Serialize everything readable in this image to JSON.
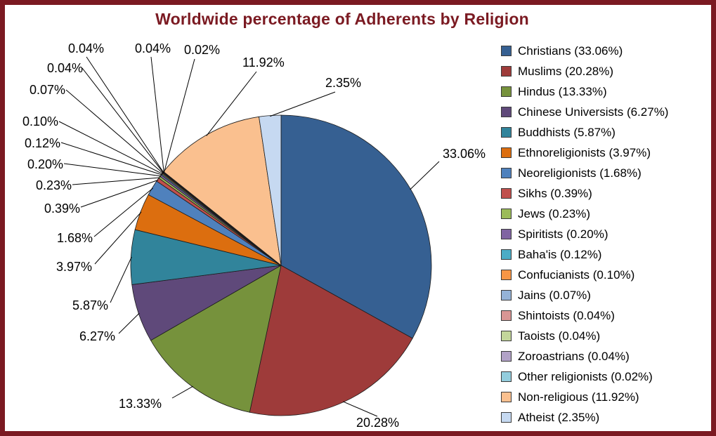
{
  "colors": {
    "frame_border": "#7B1A22",
    "title": "#7B1A22",
    "background": "#FFFFFF"
  },
  "chart_data": {
    "type": "pie",
    "title": "Worldwide percentage of Adherents by Religion",
    "legend_position": "right",
    "start_angle_deg": 0,
    "direction": "clockwise",
    "slices": [
      {
        "label": "Christians",
        "value": 33.06,
        "pct_text": "33.06%",
        "legend_text": "Christians (33.06%)",
        "color": "#366092"
      },
      {
        "label": "Muslims",
        "value": 20.28,
        "pct_text": "20.28%",
        "legend_text": "Muslims (20.28%)",
        "color": "#9E3B3A"
      },
      {
        "label": "Hindus",
        "value": 13.33,
        "pct_text": "13.33%",
        "legend_text": "Hindus (13.33%)",
        "color": "#76923C"
      },
      {
        "label": "Chinese Universists",
        "value": 6.27,
        "pct_text": "6.27%",
        "legend_text": "Chinese Universists (6.27%)",
        "color": "#5F497A"
      },
      {
        "label": "Buddhists",
        "value": 5.87,
        "pct_text": "5.87%",
        "legend_text": "Buddhists (5.87%)",
        "color": "#31849B"
      },
      {
        "label": "Ethnoreligionists",
        "value": 3.97,
        "pct_text": "3.97%",
        "legend_text": "Ethnoreligionists (3.97%)",
        "color": "#DC6E0F"
      },
      {
        "label": "Neoreligionists",
        "value": 1.68,
        "pct_text": "1.68%",
        "legend_text": "Neoreligionists (1.68%)",
        "color": "#4F81BD"
      },
      {
        "label": "Sikhs",
        "value": 0.39,
        "pct_text": "0.39%",
        "legend_text": "Sikhs (0.39%)",
        "color": "#C0504D"
      },
      {
        "label": "Jews",
        "value": 0.23,
        "pct_text": "0.23%",
        "legend_text": "Jews (0.23%)",
        "color": "#9BBB59"
      },
      {
        "label": "Spiritists",
        "value": 0.2,
        "pct_text": "0.20%",
        "legend_text": "Spiritists (0.20%)",
        "color": "#8064A2"
      },
      {
        "label": "Baha'is",
        "value": 0.12,
        "pct_text": "0.12%",
        "legend_text": "Baha'is (0.12%)",
        "color": "#4BACC6"
      },
      {
        "label": "Confucianists",
        "value": 0.1,
        "pct_text": "0.10%",
        "legend_text": "Confucianists (0.10%)",
        "color": "#F79646"
      },
      {
        "label": "Jains",
        "value": 0.07,
        "pct_text": "0.07%",
        "legend_text": "Jains (0.07%)",
        "color": "#95B3D7"
      },
      {
        "label": "Shintoists",
        "value": 0.04,
        "pct_text": "0.04%",
        "legend_text": "Shintoists (0.04%)",
        "color": "#D99694"
      },
      {
        "label": "Taoists",
        "value": 0.04,
        "pct_text": "0.04%",
        "legend_text": "Taoists (0.04%)",
        "color": "#C3D69B"
      },
      {
        "label": "Zoroastrians",
        "value": 0.04,
        "pct_text": "0.04%",
        "legend_text": "Zoroastrians (0.04%)",
        "color": "#B2A2C7"
      },
      {
        "label": "Other religionists",
        "value": 0.02,
        "pct_text": "0.02%",
        "legend_text": "Other religionists (0.02%)",
        "color": "#93CDDD"
      },
      {
        "label": "Non-religious",
        "value": 11.92,
        "pct_text": "11.92%",
        "legend_text": "Non-religious (11.92%)",
        "color": "#FAC08F"
      },
      {
        "label": "Atheist",
        "value": 2.35,
        "pct_text": "2.35%",
        "legend_text": "Atheist (2.35%)",
        "color": "#C6D9F1"
      }
    ]
  }
}
